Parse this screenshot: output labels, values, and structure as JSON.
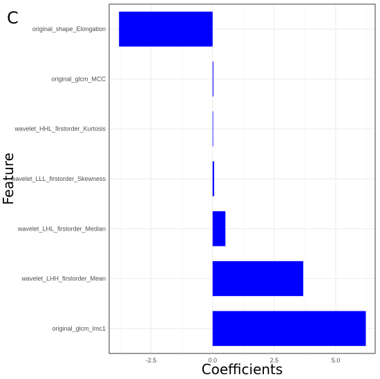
{
  "panel_label": "C",
  "chart_data": {
    "type": "bar",
    "orientation": "horizontal",
    "xlabel": "Coefficients",
    "ylabel": "Feature",
    "xlim": [
      -4.2,
      6.6
    ],
    "x_ticks": [
      -2.5,
      0.0,
      2.5,
      5.0
    ],
    "x_tick_labels": [
      "-2.5",
      "0.0",
      "2.5",
      "5.0"
    ],
    "grid": true,
    "bar_color": "#0000ff",
    "categories": [
      "original_shape_Elongation",
      "original_glcm_MCC",
      "wavelet_HHL_firstorder_Kurtosis",
      "wavelet_LLL_firstorder_Skewness",
      "wavelet_LHL_firstorder_Median",
      "wavelet_LHH_firstorder_Mean",
      "original_glcm_Imc1"
    ],
    "values": [
      -3.8,
      0.03,
      0.01,
      0.06,
      0.52,
      3.68,
      6.22
    ]
  }
}
